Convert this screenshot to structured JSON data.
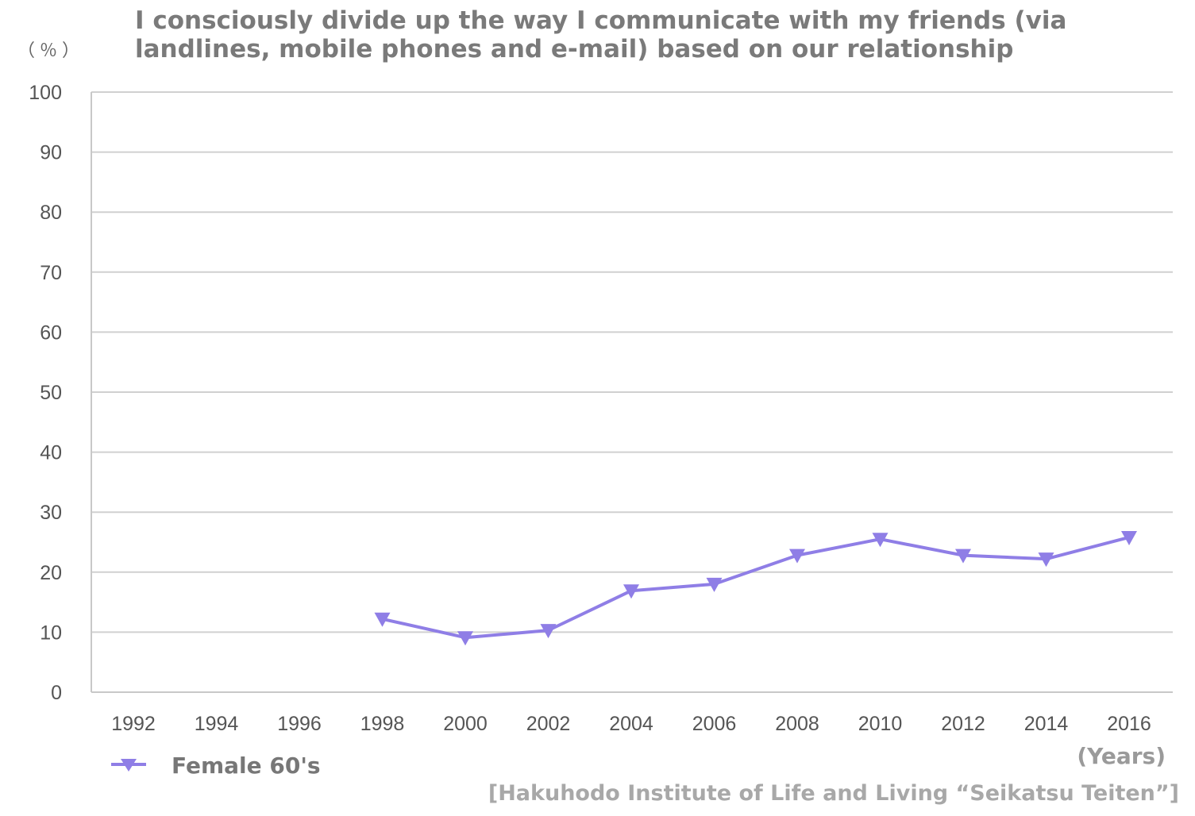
{
  "chart_data": {
    "type": "line",
    "title": "I consciously divide up the way I communicate with my friends (via landlines, mobile phones and e-mail) based on our relationship",
    "ylabel": "（％）",
    "xlabel": "(Years)",
    "source": "[Hakuhodo Institute of Life and Living “Seikatsu Teiten”]",
    "categories": [
      "1992",
      "1994",
      "1996",
      "1998",
      "2000",
      "2002",
      "2004",
      "2006",
      "2008",
      "2010",
      "2012",
      "2014",
      "2016"
    ],
    "yticks": [
      "0",
      "10",
      "20",
      "30",
      "40",
      "50",
      "60",
      "70",
      "80",
      "90",
      "100"
    ],
    "ylim": [
      0,
      100
    ],
    "grid": true,
    "legend_position": "bottom-left",
    "series": [
      {
        "name": "Female 60's",
        "color": "#8f7ee6",
        "marker": "triangle-down",
        "values": [
          null,
          null,
          null,
          12.2,
          9.1,
          10.3,
          16.9,
          18.0,
          22.8,
          25.5,
          22.8,
          22.2,
          25.8
        ]
      }
    ]
  }
}
